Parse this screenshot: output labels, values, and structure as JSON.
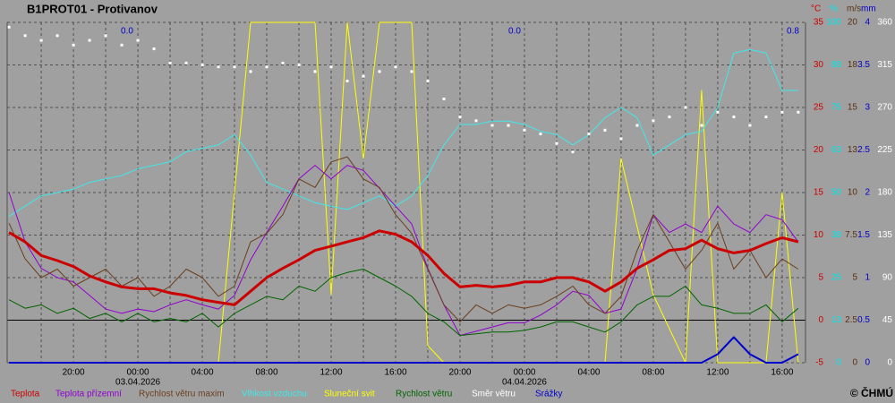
{
  "chart_data": {
    "type": "line",
    "title": "B1PROT01 - Protivanov",
    "copyright": "© ČHMÚ",
    "annotations": [
      "0.0",
      "0.0",
      "0.8"
    ],
    "x": [
      "2026-04-02T16:00",
      "2026-04-02T17:00",
      "2026-04-02T18:00",
      "2026-04-02T19:00",
      "2026-04-02T20:00",
      "2026-04-02T21:00",
      "2026-04-02T22:00",
      "2026-04-02T23:00",
      "2026-04-03T00:00",
      "2026-04-03T01:00",
      "2026-04-03T02:00",
      "2026-04-03T03:00",
      "2026-04-03T04:00",
      "2026-04-03T05:00",
      "2026-04-03T06:00",
      "2026-04-03T07:00",
      "2026-04-03T08:00",
      "2026-04-03T09:00",
      "2026-04-03T10:00",
      "2026-04-03T11:00",
      "2026-04-03T12:00",
      "2026-04-03T13:00",
      "2026-04-03T14:00",
      "2026-04-03T15:00",
      "2026-04-03T16:00",
      "2026-04-03T17:00",
      "2026-04-03T18:00",
      "2026-04-03T19:00",
      "2026-04-03T20:00",
      "2026-04-03T21:00",
      "2026-04-03T22:00",
      "2026-04-03T23:00",
      "2026-04-04T00:00",
      "2026-04-04T01:00",
      "2026-04-04T02:00",
      "2026-04-04T03:00",
      "2026-04-04T04:00",
      "2026-04-04T05:00",
      "2026-04-04T06:00",
      "2026-04-04T07:00",
      "2026-04-04T08:00",
      "2026-04-04T09:00",
      "2026-04-04T10:00",
      "2026-04-04T11:00",
      "2026-04-04T12:00",
      "2026-04-04T13:00",
      "2026-04-04T14:00",
      "2026-04-04T15:00",
      "2026-04-04T16:00",
      "2026-04-04T17:00"
    ],
    "xlim": [
      "2026-04-02T15:53",
      "2026-04-04T17:27"
    ],
    "xticks": [
      {
        "value": "2026-04-02T20:00",
        "label": "20:00"
      },
      {
        "value": "2026-04-03T00:00",
        "label": "00:00"
      },
      {
        "value": "2026-04-03T04:00",
        "label": "04:00"
      },
      {
        "value": "2026-04-03T08:00",
        "label": "08:00"
      },
      {
        "value": "2026-04-03T12:00",
        "label": "12:00"
      },
      {
        "value": "2026-04-03T16:00",
        "label": "16:00"
      },
      {
        "value": "2026-04-03T20:00",
        "label": "20:00"
      },
      {
        "value": "2026-04-04T00:00",
        "label": "00:00"
      },
      {
        "value": "2026-04-04T04:00",
        "label": "04:00"
      },
      {
        "value": "2026-04-04T08:00",
        "label": "08:00"
      },
      {
        "value": "2026-04-04T12:00",
        "label": "12:00"
      },
      {
        "value": "2026-04-04T16:00",
        "label": "16:00"
      }
    ],
    "xminor": [
      "2026-04-02T18:00",
      "2026-04-02T22:00",
      "2026-04-03T02:00",
      "2026-04-03T06:00",
      "2026-04-03T10:00",
      "2026-04-03T14:00",
      "2026-04-03T18:00",
      "2026-04-03T22:00",
      "2026-04-04T02:00",
      "2026-04-04T06:00",
      "2026-04-04T10:00",
      "2026-04-04T14:00"
    ],
    "date_labels": [
      {
        "value": "2026-04-03T00:00",
        "label": "03.04.2026"
      },
      {
        "value": "2026-04-04T00:00",
        "label": "04.04.2026"
      }
    ],
    "grid": true,
    "axes": {
      "temp": {
        "unit": "°C",
        "color": "#cc0000",
        "lim": [
          -5,
          35
        ],
        "ticks": [
          -5,
          0,
          5,
          10,
          15,
          20,
          25,
          30,
          35
        ]
      },
      "pct": {
        "unit": "%",
        "color": "#00e8e8",
        "lim": [
          0,
          100
        ],
        "ticks": [
          0,
          {
            "value": 12.5,
            "label": "13"
          },
          25,
          {
            "value": 37.5,
            "label": "38"
          },
          50,
          {
            "value": 62.5,
            "label": "63"
          },
          75,
          {
            "value": 87.5,
            "label": "88"
          },
          100
        ]
      },
      "ms": {
        "unit": "m/s",
        "color": "#5a3010",
        "lim": [
          0,
          20
        ],
        "ticks": [
          0,
          2.5,
          5,
          7.5,
          10,
          {
            "value": 12.5,
            "label": "13"
          },
          15,
          {
            "value": 17.5,
            "label": "18"
          },
          20
        ]
      },
      "mm": {
        "unit": "mm",
        "color": "#0000cc",
        "lim": [
          0,
          4
        ],
        "ticks": [
          0,
          0.5,
          1,
          1.5,
          2,
          2.5,
          3,
          3.5,
          4
        ]
      },
      "deg": {
        "color": "#ffffff",
        "lim": [
          0,
          360
        ],
        "ticks": [
          0,
          45,
          90,
          135,
          180,
          225,
          270,
          315,
          360
        ]
      }
    },
    "series": [
      {
        "name": "Teplota",
        "color": "#cc0000",
        "axis": "temp",
        "width": 3,
        "values": [
          10.3,
          9.2,
          7.6,
          7,
          6.3,
          5.2,
          4.5,
          3.9,
          3.7,
          3.7,
          3.2,
          2.9,
          2.4,
          2.1,
          1.8,
          3.4,
          5,
          6.1,
          7.1,
          8.2,
          8.7,
          9.2,
          9.7,
          10.5,
          10.1,
          9.2,
          7.6,
          5.5,
          3.9,
          4.1,
          3.9,
          4.1,
          4.5,
          4.5,
          5,
          5,
          4.5,
          3.4,
          4.5,
          6.1,
          7.1,
          8.2,
          8.4,
          9.4,
          8.4,
          7.9,
          8.2,
          9,
          9.7,
          9.2
        ]
      },
      {
        "name": "Teplota přízemní",
        "color": "#9000d0",
        "axis": "temp",
        "width": 1,
        "values": [
          15,
          9.2,
          6.1,
          5,
          4.5,
          2.9,
          1.3,
          0.8,
          1.3,
          1,
          1.8,
          2.4,
          1.8,
          1.3,
          2.9,
          7.1,
          10.3,
          13.4,
          16.6,
          18.2,
          16.6,
          18.2,
          17.6,
          15.5,
          13.4,
          11.3,
          6.1,
          1.8,
          -1.8,
          -1.3,
          -0.8,
          -0.3,
          -0.3,
          0.6,
          1.8,
          3.4,
          2.9,
          0.8,
          1.3,
          6.1,
          12.4,
          10.3,
          11.3,
          10.3,
          13.4,
          11.3,
          10.3,
          12.4,
          11.8,
          9.2
        ]
      },
      {
        "name": "Rychlost větru maxim",
        "color": "#6b3f1f",
        "axis": "ms",
        "width": 1,
        "values": [
          8.2,
          6.1,
          5,
          5.5,
          4.5,
          5,
          5.5,
          4.5,
          5,
          3.9,
          4.5,
          5.5,
          5,
          3.9,
          4.5,
          7.1,
          7.6,
          8.7,
          10.8,
          10.3,
          11.8,
          12.1,
          10.8,
          10.3,
          8.7,
          7.6,
          5.5,
          3.4,
          2.4,
          3.4,
          2.9,
          3.4,
          3.2,
          3.4,
          3.9,
          4.5,
          3.4,
          2.9,
          3.9,
          6.6,
          8.7,
          7.1,
          5.5,
          6.6,
          8.2,
          5.5,
          6.6,
          5,
          6.1,
          5.5
        ]
      },
      {
        "name": "Vlhkost vzduchu",
        "color": "#40e8e8",
        "axis": "pct",
        "width": 1,
        "values": [
          43,
          46,
          49,
          50,
          51,
          53,
          54,
          55,
          57,
          58,
          59,
          62,
          63,
          64,
          67,
          61,
          53,
          51,
          49,
          47,
          46,
          45,
          47,
          49,
          46,
          49,
          55,
          64,
          70,
          70,
          71,
          71,
          70,
          68,
          67,
          64,
          67,
          72,
          75,
          72,
          61,
          64,
          67,
          68,
          75,
          91,
          92,
          91,
          80,
          80
        ]
      },
      {
        "name": "Sluneční svit",
        "color": "#ffff00",
        "axis": "pct",
        "width": 1,
        "values": [
          0,
          0,
          0,
          0,
          0,
          0,
          0,
          0,
          0,
          0,
          0,
          0,
          0,
          0,
          50,
          100,
          100,
          100,
          100,
          100,
          20,
          100,
          60,
          100,
          100,
          100,
          5,
          0,
          0,
          0,
          0,
          0,
          0,
          0,
          0,
          0,
          0,
          0,
          60,
          40,
          20,
          10,
          0,
          80,
          0,
          0,
          0,
          0,
          50,
          0
        ]
      },
      {
        "name": "Rychlost větru",
        "color": "#006400",
        "axis": "ms",
        "width": 1,
        "values": [
          3.7,
          3.2,
          3.4,
          2.9,
          3.2,
          2.6,
          2.9,
          2.4,
          2.9,
          2.4,
          2.6,
          2.4,
          2.9,
          2.1,
          2.9,
          3.4,
          3.9,
          3.7,
          4.5,
          4.2,
          5,
          5.3,
          5.5,
          5,
          4.5,
          3.9,
          2.9,
          2.4,
          1.6,
          1.7,
          1.8,
          1.8,
          1.9,
          2.1,
          2.4,
          2.4,
          2.1,
          1.8,
          2.4,
          3.4,
          3.9,
          3.9,
          4.5,
          3.4,
          3.2,
          2.9,
          2.9,
          3.4,
          2.4,
          3.2
        ]
      },
      {
        "name": "Směr větru",
        "color": "#ffffff",
        "axis": "deg",
        "style": "dots",
        "values": [
          355,
          346,
          341,
          346,
          336,
          341,
          346,
          336,
          341,
          332,
          317,
          317,
          315,
          313,
          313,
          308,
          313,
          317,
          315,
          308,
          313,
          298,
          303,
          308,
          313,
          308,
          298,
          279,
          260,
          256,
          251,
          251,
          246,
          242,
          232,
          223,
          242,
          246,
          237,
          251,
          256,
          260,
          270,
          251,
          265,
          260,
          251,
          260,
          265,
          265
        ]
      },
      {
        "name": "Srážky",
        "color": "#0000cc",
        "axis": "mm",
        "width": 2,
        "values": [
          0,
          0,
          0,
          0,
          0,
          0,
          0,
          0,
          0,
          0,
          0,
          0,
          0,
          0,
          0,
          0,
          0,
          0,
          0,
          0,
          0,
          0,
          0,
          0,
          0,
          0,
          0,
          0,
          0,
          0,
          0,
          0,
          0,
          0,
          0,
          0,
          0,
          0,
          0,
          0,
          0,
          0,
          0,
          0,
          0.1,
          0.3,
          0.1,
          0,
          0,
          0.1
        ]
      }
    ]
  }
}
